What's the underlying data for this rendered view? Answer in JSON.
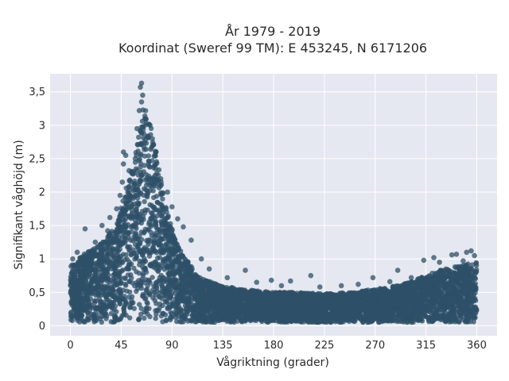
{
  "chart_data": {
    "type": "scatter",
    "title_line1": "År 1979 - 2019",
    "title_line2": "Koordinat (Sweref 99 TM): E 453245, N 6171206",
    "xlabel": "Vågriktning (grader)",
    "ylabel": "Signifikant våghöjd (m)",
    "xlim": [
      -18,
      378
    ],
    "ylim": [
      -0.15,
      3.77
    ],
    "xticks": [
      0,
      45,
      90,
      135,
      180,
      225,
      270,
      315,
      360
    ],
    "xtick_labels": [
      "0",
      "45",
      "90",
      "135",
      "180",
      "225",
      "270",
      "315",
      "360"
    ],
    "yticks": [
      0,
      0.5,
      1,
      1.5,
      2,
      2.5,
      3,
      3.5
    ],
    "ytick_labels": [
      "0",
      "0,5",
      "1",
      "1,5",
      "2",
      "2,5",
      "3",
      "3,5"
    ],
    "grid": true,
    "marker_color": "#2d5068",
    "background_color": "#e5e8f0",
    "envelope": {
      "direction_deg": [
        0,
        10,
        20,
        30,
        40,
        45,
        50,
        55,
        60,
        65,
        70,
        75,
        80,
        85,
        90,
        95,
        100,
        105,
        110,
        120,
        135,
        150,
        180,
        200,
        225,
        250,
        270,
        290,
        300,
        315,
        330,
        345,
        360
      ],
      "upper_height_m": [
        0.9,
        1.05,
        1.15,
        1.3,
        1.5,
        1.8,
        2.1,
        2.4,
        2.8,
        3.3,
        3.1,
        2.7,
        2.2,
        1.8,
        1.45,
        1.2,
        1.05,
        0.95,
        0.8,
        0.68,
        0.6,
        0.55,
        0.5,
        0.5,
        0.48,
        0.5,
        0.55,
        0.6,
        0.65,
        0.75,
        0.85,
        0.9,
        0.95
      ],
      "lower_height_m": [
        0.05,
        0.05,
        0.05,
        0.05,
        0.05,
        0.05,
        0.05,
        0.05,
        0.05,
        0.05,
        0.05,
        0.05,
        0.05,
        0.05,
        0.05,
        0.05,
        0.05,
        0.05,
        0.05,
        0.05,
        0.05,
        0.05,
        0.05,
        0.05,
        0.05,
        0.05,
        0.05,
        0.05,
        0.05,
        0.05,
        0.05,
        0.05,
        0.05
      ]
    },
    "outlier_points": [
      {
        "x": 63,
        "y": 3.63
      },
      {
        "x": 62,
        "y": 3.57
      },
      {
        "x": 64,
        "y": 3.45
      },
      {
        "x": 63,
        "y": 3.35
      },
      {
        "x": 61,
        "y": 3.22
      },
      {
        "x": 66,
        "y": 3.1
      },
      {
        "x": 59,
        "y": 2.95
      },
      {
        "x": 69,
        "y": 2.82
      },
      {
        "x": 47,
        "y": 2.6
      },
      {
        "x": 49,
        "y": 2.55
      },
      {
        "x": 47,
        "y": 2.42
      },
      {
        "x": 52,
        "y": 2.32
      },
      {
        "x": 46,
        "y": 2.15
      },
      {
        "x": 44,
        "y": 1.95
      },
      {
        "x": 75,
        "y": 2.55
      },
      {
        "x": 80,
        "y": 2.2
      },
      {
        "x": 86,
        "y": 2.0
      },
      {
        "x": 90,
        "y": 1.78
      },
      {
        "x": 95,
        "y": 1.6
      },
      {
        "x": 100,
        "y": 1.48
      },
      {
        "x": 107,
        "y": 1.28
      },
      {
        "x": 116,
        "y": 1.0
      },
      {
        "x": 123,
        "y": 0.85
      },
      {
        "x": 28,
        "y": 1.5
      },
      {
        "x": 35,
        "y": 1.62
      },
      {
        "x": 33,
        "y": 1.42
      },
      {
        "x": 41,
        "y": 1.75
      },
      {
        "x": 13,
        "y": 1.45
      },
      {
        "x": 22,
        "y": 1.25
      },
      {
        "x": 6,
        "y": 1.1
      },
      {
        "x": 2,
        "y": 1.0
      },
      {
        "x": 139,
        "y": 0.72
      },
      {
        "x": 155,
        "y": 0.83
      },
      {
        "x": 165,
        "y": 0.65
      },
      {
        "x": 178,
        "y": 0.68
      },
      {
        "x": 187,
        "y": 0.6
      },
      {
        "x": 195,
        "y": 0.67
      },
      {
        "x": 213,
        "y": 0.75
      },
      {
        "x": 221,
        "y": 0.58
      },
      {
        "x": 240,
        "y": 0.6
      },
      {
        "x": 255,
        "y": 0.62
      },
      {
        "x": 268,
        "y": 0.72
      },
      {
        "x": 283,
        "y": 0.66
      },
      {
        "x": 290,
        "y": 0.83
      },
      {
        "x": 302,
        "y": 0.72
      },
      {
        "x": 313,
        "y": 0.98
      },
      {
        "x": 322,
        "y": 1.02
      },
      {
        "x": 327,
        "y": 0.95
      },
      {
        "x": 338,
        "y": 1.06
      },
      {
        "x": 342,
        "y": 1.07
      },
      {
        "x": 351,
        "y": 1.1
      },
      {
        "x": 355,
        "y": 1.12
      },
      {
        "x": 348,
        "y": 0.97
      },
      {
        "x": 358,
        "y": 1.05
      }
    ]
  }
}
